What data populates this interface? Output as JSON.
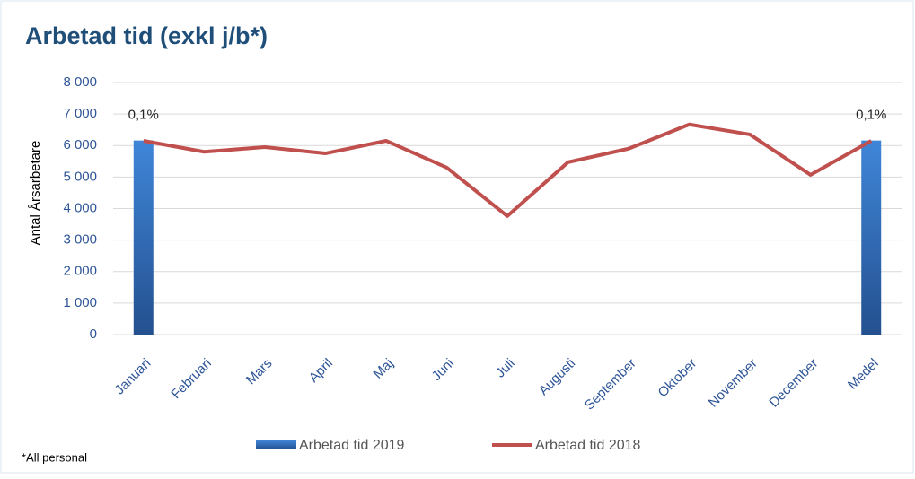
{
  "chart_data": {
    "type": "bar-line",
    "title": "Arbetad tid (exkl j/b*)",
    "y_label": "Antal Årsarbetare",
    "footnote": "*All personal",
    "categories": [
      "Januari",
      "Februari",
      "Mars",
      "April",
      "Maj",
      "Juni",
      "Juli",
      "Augusti",
      "September",
      "Oktober",
      "November",
      "December",
      "Medel"
    ],
    "series": [
      {
        "name": "Arbetad tid 2019",
        "type": "bar",
        "color": "#3a7cc9",
        "values": [
          6160,
          null,
          null,
          null,
          null,
          null,
          null,
          null,
          null,
          null,
          null,
          null,
          6160
        ],
        "labels": [
          "0,1%",
          null,
          null,
          null,
          null,
          null,
          null,
          null,
          null,
          null,
          null,
          null,
          "0,1%"
        ]
      },
      {
        "name": "Arbetad tid 2018",
        "type": "line",
        "color": "#c0504d",
        "values": [
          6150,
          5800,
          5950,
          5750,
          6150,
          5300,
          3760,
          5470,
          5900,
          6670,
          6350,
          5070,
          6150
        ]
      }
    ],
    "ylim": [
      0,
      8000
    ],
    "yticks": [
      0,
      {
        "value": 1000,
        "label": "1 000"
      },
      {
        "value": 2000,
        "label": "2 000"
      },
      {
        "value": 3000,
        "label": "3 000"
      },
      {
        "value": 4000,
        "label": "4 000"
      },
      {
        "value": 5000,
        "label": "5 000"
      },
      {
        "value": 6000,
        "label": "6 000"
      },
      {
        "value": 7000,
        "label": "7 000"
      },
      {
        "value": 8000,
        "label": "8 000"
      }
    ],
    "grid": true,
    "legend": "bottom"
  }
}
